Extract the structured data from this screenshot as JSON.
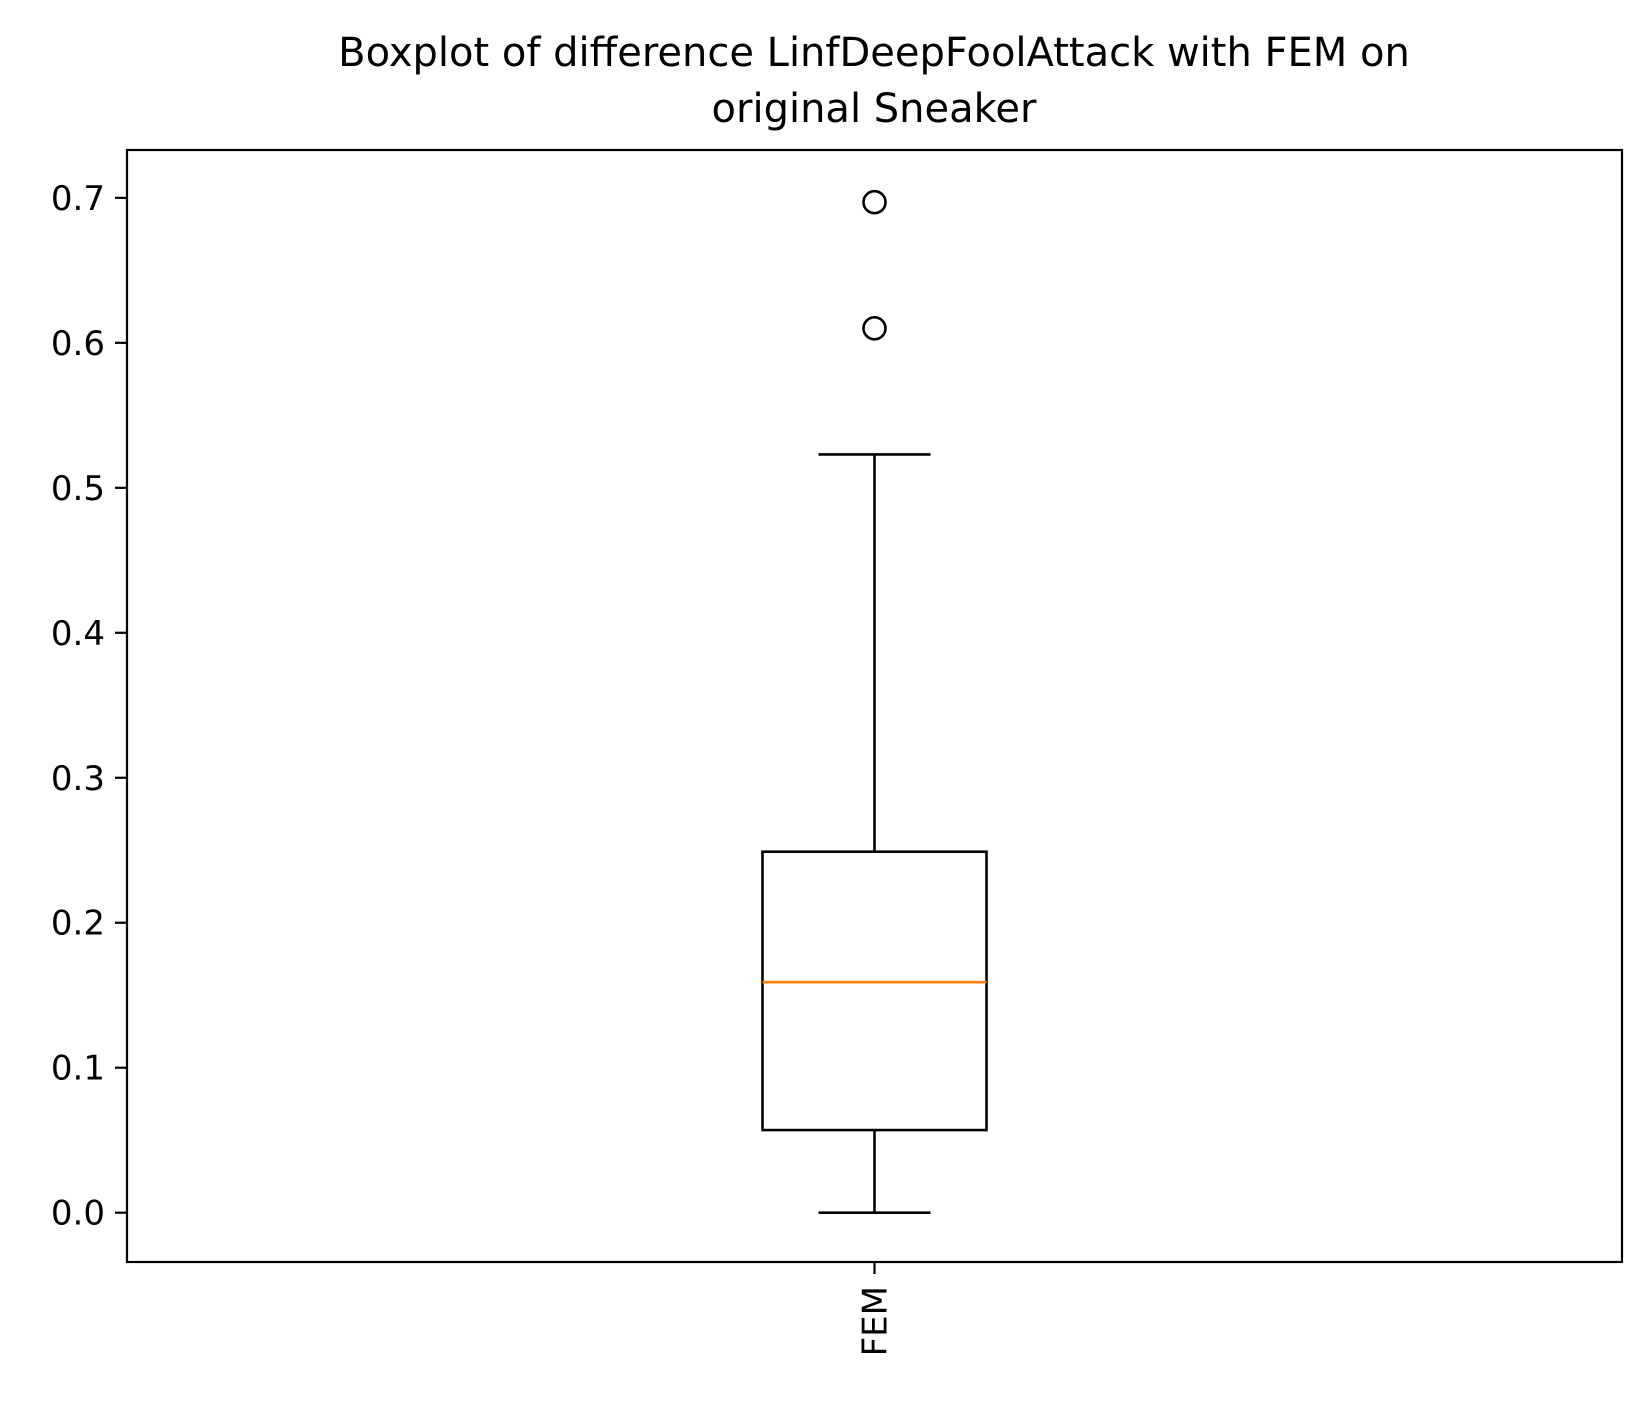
{
  "chart_data": {
    "type": "boxplot",
    "title_lines": [
      "Boxplot of difference LinfDeepFoolAttack with FEM on",
      "original Sneaker"
    ],
    "xlabel": "",
    "ylabel": "",
    "categories": [
      "FEM"
    ],
    "ylim": [
      -0.034,
      0.733
    ],
    "yticks": [
      "0.0",
      "0.1",
      "0.2",
      "0.3",
      "0.4",
      "0.5",
      "0.6",
      "0.7"
    ],
    "ytick_values": [
      0.0,
      0.1,
      0.2,
      0.3,
      0.4,
      0.5,
      0.6,
      0.7
    ],
    "boxes": [
      {
        "category": "FEM",
        "whisker_low": 0.0,
        "q1": 0.057,
        "median": 0.159,
        "q3": 0.249,
        "whisker_high": 0.523,
        "outliers": [
          0.61,
          0.697
        ]
      }
    ],
    "grid": false,
    "colors": {
      "box": "#000000",
      "median": "#ff7f0e",
      "outlier_edge": "#000000"
    }
  }
}
